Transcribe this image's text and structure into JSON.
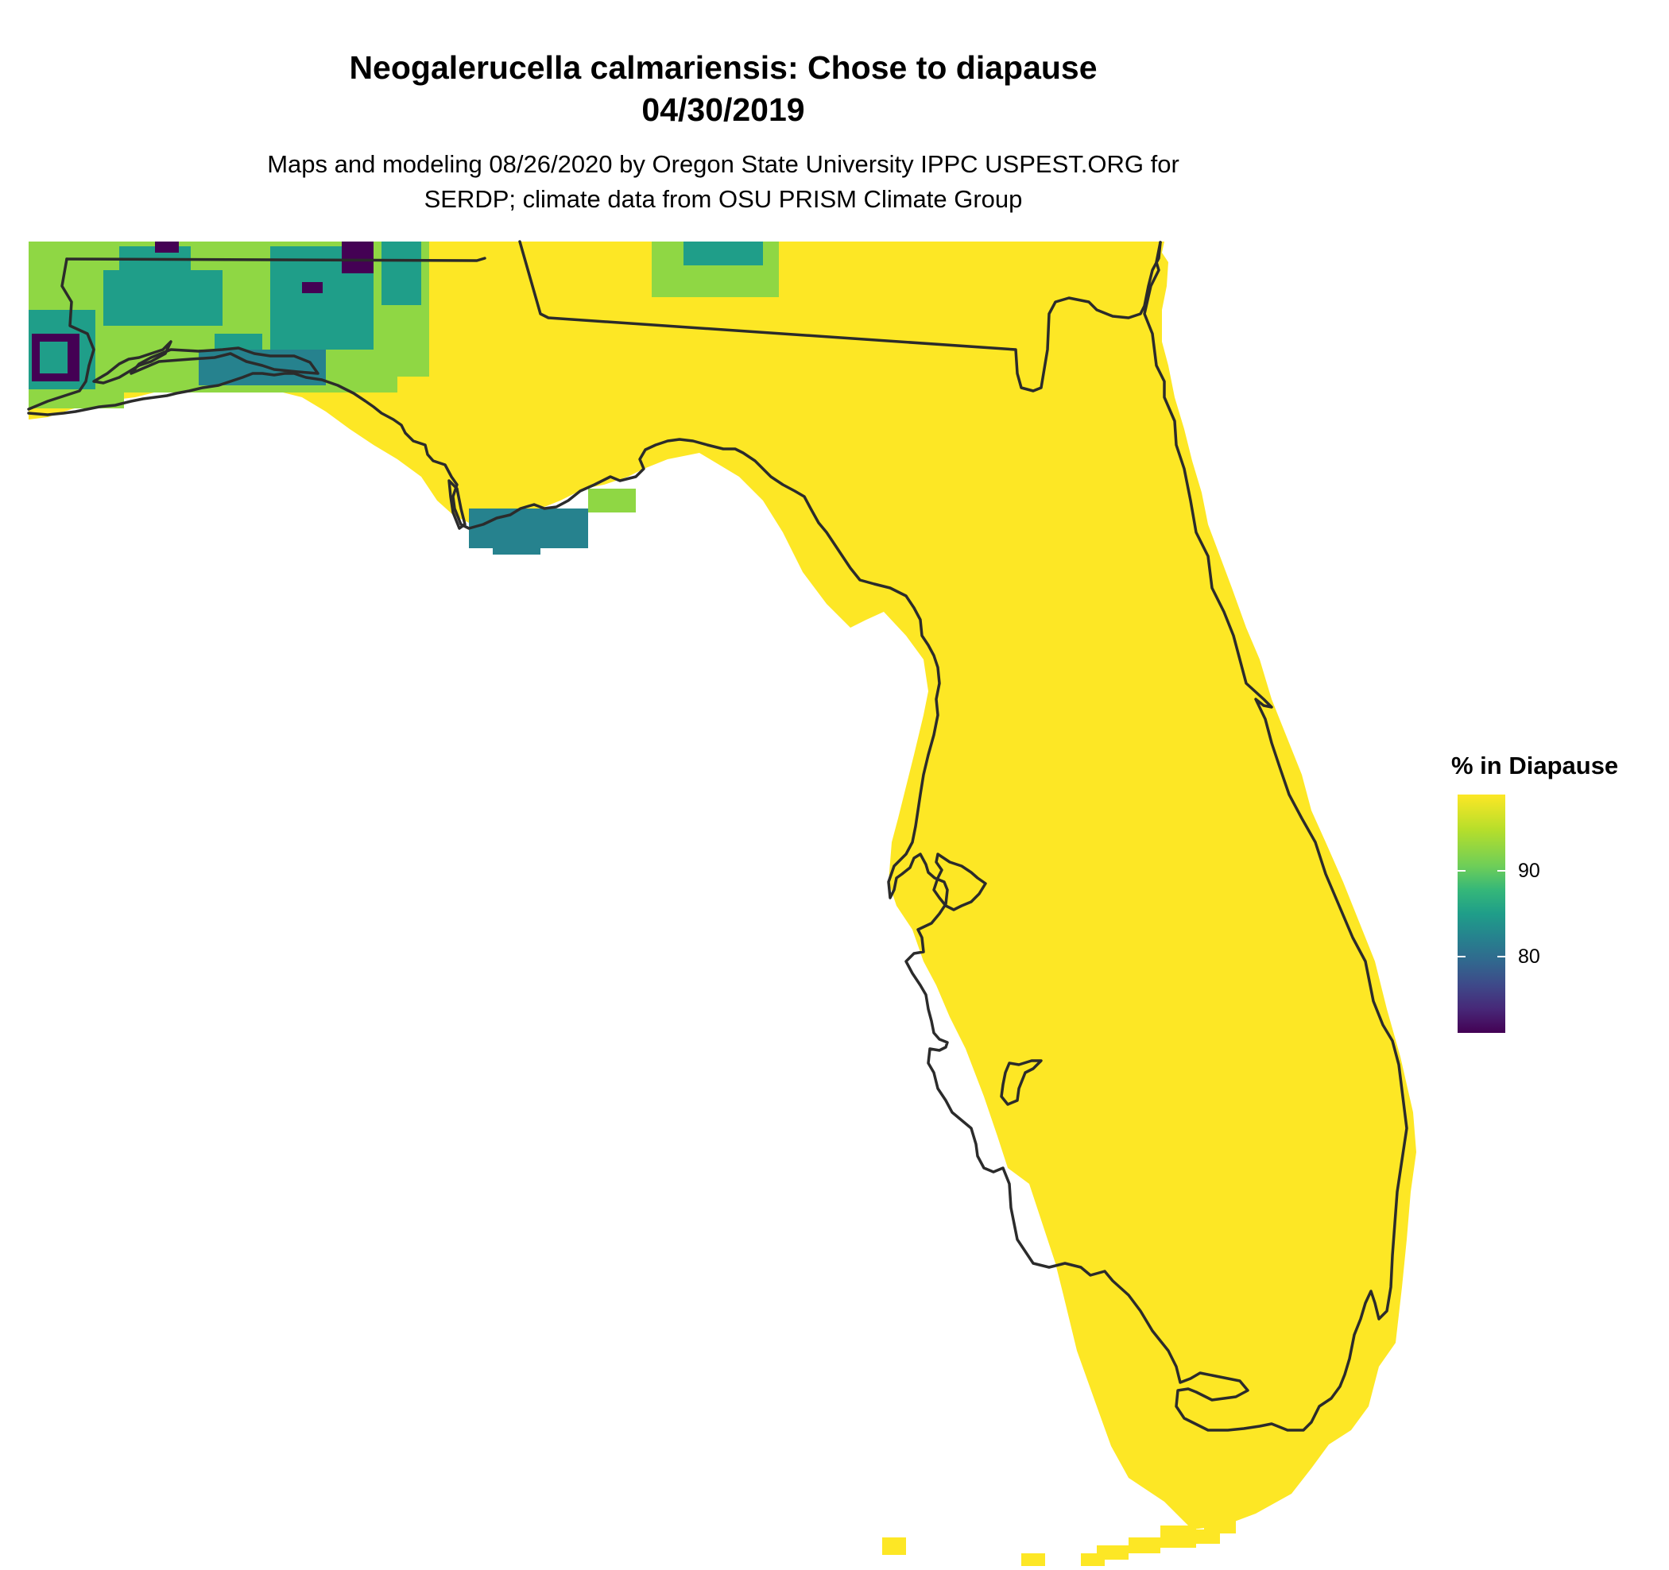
{
  "title_line1": "Neogalerucella calmariensis: Chose to diapause",
  "title_line2": "04/30/2019",
  "subtitle_line1": "Maps and modeling 08/26/2020 by Oregon State University IPPC USPEST.ORG for",
  "subtitle_line2": "SERDP; climate data from OSU PRISM Climate Group",
  "legend": {
    "title": "% in Diapause",
    "ticks": [
      {
        "label": "90",
        "value": 90
      },
      {
        "label": "80",
        "value": 80
      }
    ],
    "min": 71,
    "max": 99,
    "palette": "viridis"
  },
  "map": {
    "region": "Florida",
    "dominant_value_color": "#fde725",
    "colors": {
      "yellow": "#fde725",
      "yellow_green": "#b5de2b",
      "light_green": "#8fd744",
      "teal": "#1f9e89",
      "dark_teal": "#26828e",
      "purple": "#440154",
      "outline": "#2b2b2b"
    }
  }
}
